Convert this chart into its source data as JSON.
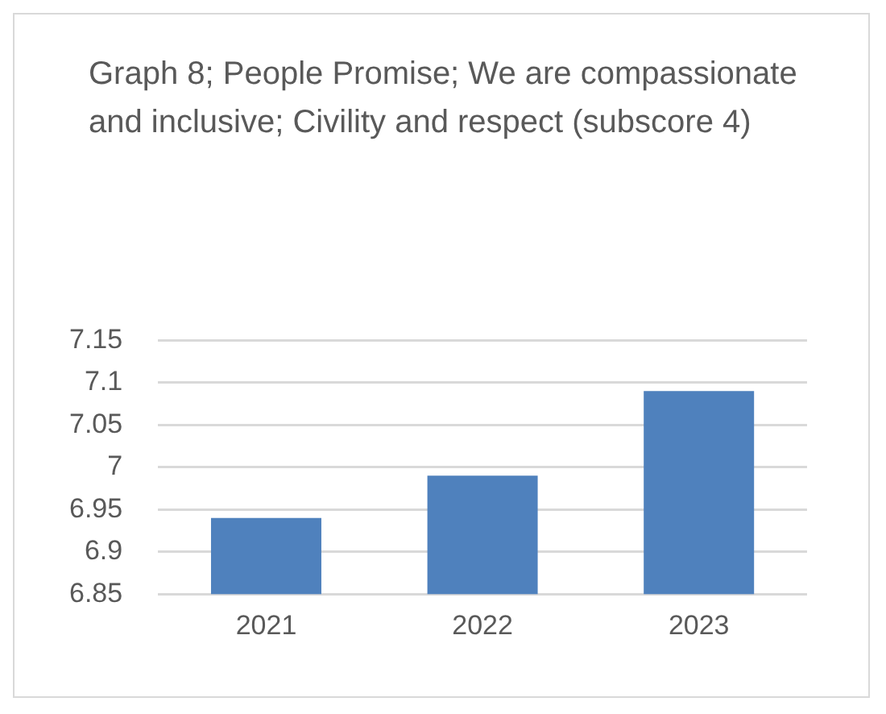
{
  "chart_data": {
    "type": "bar",
    "title": "Graph 8; People Promise; We are compassionate and inclusive; Civility and respect (subscore 4)",
    "categories": [
      "2021",
      "2022",
      "2023"
    ],
    "values": [
      6.94,
      6.99,
      7.09
    ],
    "color": "#4f81bd",
    "ylim": [
      6.85,
      7.15
    ],
    "yticks": [
      6.85,
      6.9,
      6.95,
      7,
      7.05,
      7.1,
      7.15
    ],
    "grid": "y",
    "legend": false
  }
}
